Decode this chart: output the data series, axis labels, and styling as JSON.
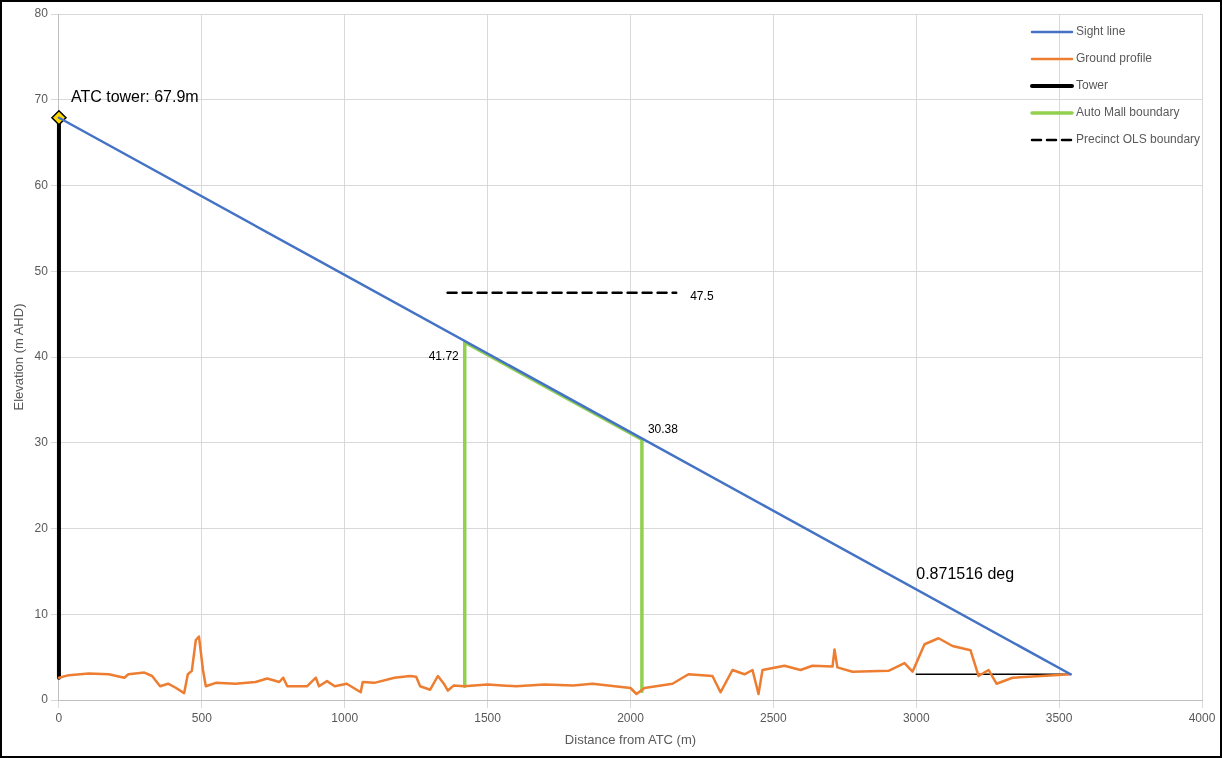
{
  "chart_data": {
    "type": "line",
    "xlabel": "Distance from ATC (m)",
    "ylabel": "Elevation (m AHD)",
    "xlim": [
      0,
      4000
    ],
    "xticks": [
      0,
      500,
      1000,
      1500,
      2000,
      2500,
      3000,
      3500,
      4000
    ],
    "ylim": [
      0,
      80
    ],
    "yticks": [
      0,
      10,
      20,
      30,
      40,
      50,
      60,
      70,
      80
    ],
    "grid": true,
    "legend": "top right",
    "marker": "none",
    "series": [
      {
        "name": "Sight line",
        "color": "#4472c4",
        "x": [
          0,
          3540
        ],
        "values": [
          67.9,
          3
        ]
      },
      {
        "name": "Ground profile",
        "color": "#ed7d31",
        "x": [
          0,
          35,
          104,
          174,
          229,
          243,
          299,
          326,
          354,
          382,
          410,
          438,
          451,
          465,
          479,
          490,
          504,
          514,
          549,
          618,
          688,
          729,
          771,
          785,
          799,
          868,
          899,
          910,
          938,
          965,
          1007,
          1056,
          1063,
          1104,
          1174,
          1229,
          1250,
          1264,
          1299,
          1326,
          1347,
          1361,
          1382,
          1417,
          1500,
          1600,
          1700,
          1800,
          1867,
          2000,
          2021,
          2049,
          2147,
          2203,
          2287,
          2315,
          2357,
          2399,
          2427,
          2448,
          2462,
          2539,
          2595,
          2637,
          2707,
          2714,
          2724,
          2777,
          2903,
          2959,
          2987,
          3029,
          3078,
          3127,
          3190,
          3218,
          3253,
          3281,
          3337,
          3540
        ],
        "values": [
          2.6,
          2.9,
          3.1,
          3.0,
          2.6,
          3.0,
          3.2,
          2.8,
          1.6,
          1.9,
          1.4,
          0.8,
          3.0,
          3.4,
          7.0,
          7.4,
          3.5,
          1.6,
          2.0,
          1.9,
          2.1,
          2.5,
          2.1,
          2.6,
          1.6,
          1.6,
          2.6,
          1.6,
          2.2,
          1.6,
          1.9,
          0.9,
          2.1,
          2.0,
          2.6,
          2.8,
          2.7,
          1.6,
          1.2,
          2.8,
          1.9,
          1.1,
          1.7,
          1.6,
          1.8,
          1.6,
          1.8,
          1.7,
          1.9,
          1.4,
          0.7,
          1.4,
          1.9,
          3.0,
          2.8,
          0.9,
          3.5,
          3.0,
          3.5,
          0.7,
          3.5,
          4.0,
          3.5,
          4.0,
          3.9,
          5.9,
          3.8,
          3.3,
          3.4,
          4.3,
          3.3,
          6.5,
          7.2,
          6.3,
          5.8,
          2.8,
          3.5,
          1.9,
          2.6,
          3.0
        ]
      },
      {
        "name": "Tower",
        "color": "#000000",
        "marker": "diamond",
        "colors": [
          null,
          "#ffd700"
        ],
        "x": [
          0,
          0
        ],
        "values": [
          2.6,
          67.9
        ]
      },
      {
        "name": "Auto Mall boundary",
        "color": "#92d050",
        "x": [
          1420,
          1420,
          2040,
          2040
        ],
        "values": [
          1.6,
          41.72,
          30.38,
          1.0
        ]
      },
      {
        "name": "Precinct OLS boundary",
        "color": "#000000",
        "line_style": "dashed",
        "x": [
          1360,
          2160
        ],
        "values": [
          47.5,
          47.5
        ]
      },
      {
        "color": "#000000",
        "x": [
          3000,
          3540
        ],
        "values": [
          3,
          3
        ]
      }
    ],
    "annotations": [
      {
        "text": "ATC tower: 67.9m",
        "x": 0,
        "y": 67.9
      },
      {
        "text": "41.72",
        "x": 1420,
        "y": 41.72
      },
      {
        "text": "30.38",
        "x": 2040,
        "y": 30.38
      },
      {
        "text": "47.5",
        "x": 2160,
        "y": 47.5
      },
      {
        "text": "0.871516 deg",
        "x": 3000,
        "y": 13
      }
    ]
  }
}
